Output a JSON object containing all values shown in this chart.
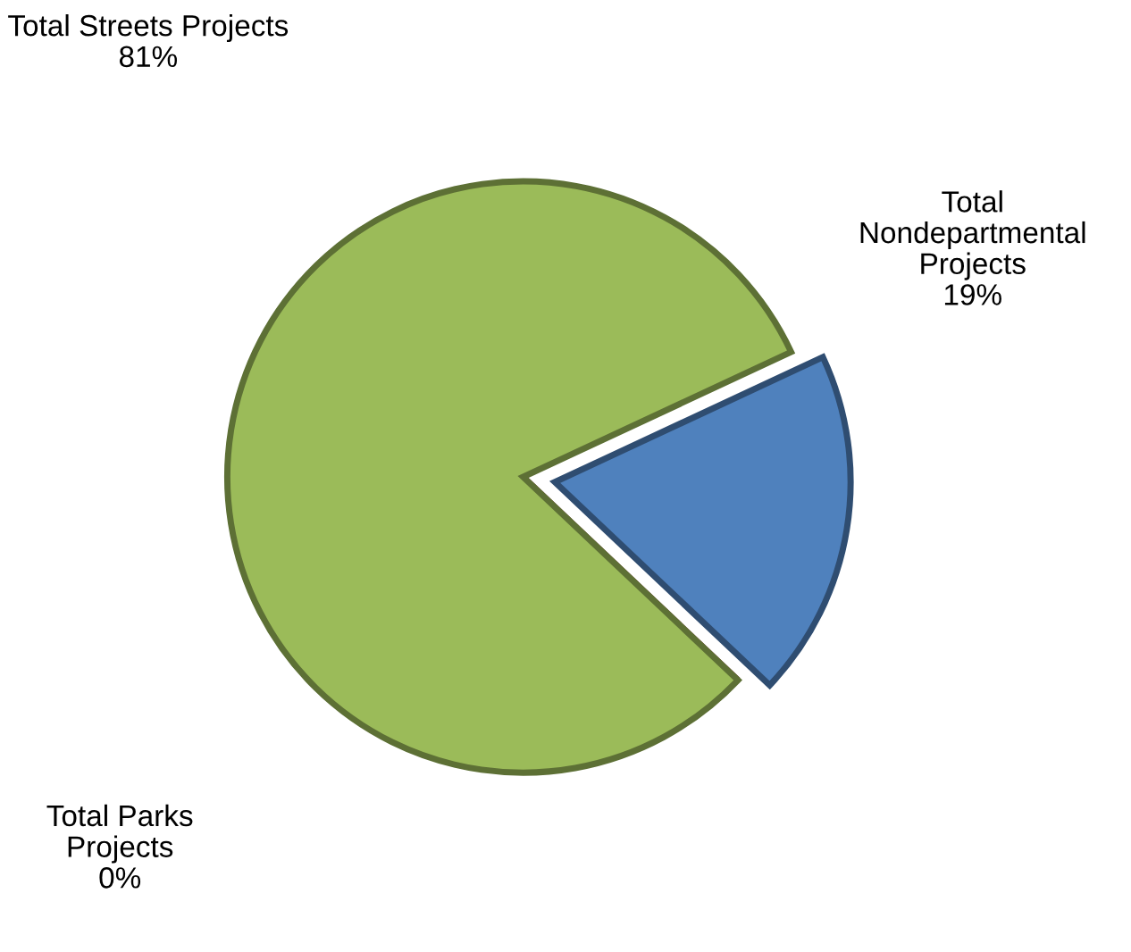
{
  "chart_data": {
    "type": "pie",
    "categories": [
      "Total\nNondepartmental\nProjects",
      "Total Parks\nProjects",
      "Total Streets Projects"
    ],
    "values": [
      19,
      0,
      81
    ],
    "colors": [
      "#4f81bd",
      "#c0504d",
      "#9bbb59"
    ],
    "value_labels": [
      "19%",
      "0%",
      "81%"
    ]
  }
}
